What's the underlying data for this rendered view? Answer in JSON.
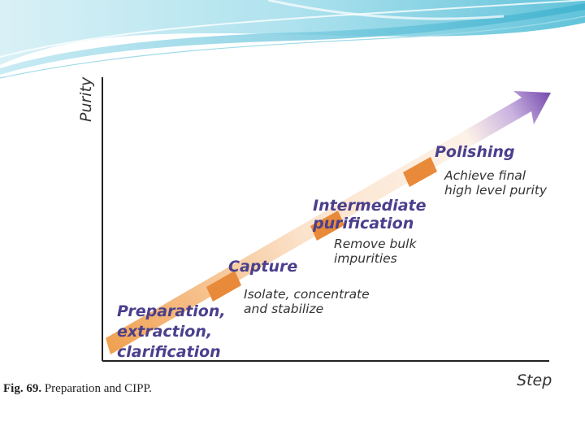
{
  "axes": {
    "y_label": "Purity",
    "x_label": "Step"
  },
  "stages": [
    {
      "title_lines": [
        "Preparation,",
        "extraction,",
        "clarification"
      ],
      "description_lines": []
    },
    {
      "title_lines": [
        "Capture"
      ],
      "description_lines": [
        "Isolate, concentrate",
        "and stabilize"
      ]
    },
    {
      "title_lines": [
        "Intermediate",
        "purification"
      ],
      "description_lines": [
        "Remove bulk",
        "impurities"
      ]
    },
    {
      "title_lines": [
        "Polishing"
      ],
      "description_lines": [
        "Achieve final",
        "high level purity"
      ]
    }
  ],
  "caption": {
    "bold": "Fig. 69.",
    "text": " Preparation and CIPP."
  },
  "colors": {
    "arrow_start": "#f0a050",
    "arrow_end": "#7a4fb0",
    "segment": "#e88a3a",
    "stage_text": "#4a3f8c",
    "banner": "#7fd0e0"
  }
}
